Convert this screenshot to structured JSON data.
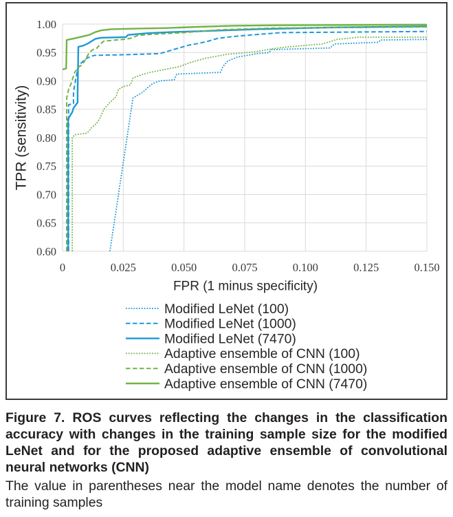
{
  "caption": {
    "title": "Figure 7. ROS curves reflecting the changes in the classification accuracy with changes in the training sample size for the modified LeNet and for the proposed adaptive ensemble of convolutional neural networks (CNN)",
    "note": "The value in parentheses near the model name denotes the number of training samples"
  },
  "chart_data": {
    "type": "line",
    "xlabel": "FPR (1 minus specificity)",
    "ylabel": "TPR (sensitivity)",
    "xlim": [
      0,
      0.15
    ],
    "ylim": [
      0.6,
      1.0
    ],
    "x_ticks": [
      0,
      0.025,
      0.05,
      0.075,
      0.1,
      0.125,
      0.15
    ],
    "x_tick_labels": [
      "0",
      "0.025",
      "0.050",
      "0.075",
      "0.100",
      "0.125",
      "0.150"
    ],
    "y_ticks": [
      0.6,
      0.65,
      0.7,
      0.75,
      0.8,
      0.85,
      0.9,
      0.95,
      1.0
    ],
    "y_tick_labels": [
      "0.60",
      "0.65",
      "0.70",
      "0.75",
      "0.80",
      "0.85",
      "0.90",
      "0.95",
      "1.00"
    ],
    "grid": true,
    "legend_position": "bottom",
    "series": [
      {
        "name": "Modified LeNet (100)",
        "color": "#1f97d6",
        "line_style": "dotted",
        "x": [
          0.0195,
          0.029,
          0.031,
          0.033,
          0.035,
          0.037,
          0.04,
          0.046,
          0.047,
          0.065,
          0.066,
          0.068,
          0.072,
          0.08,
          0.085,
          0.086,
          0.11,
          0.112,
          0.13,
          0.131,
          0.15
        ],
        "y": [
          0.6,
          0.87,
          0.875,
          0.88,
          0.888,
          0.895,
          0.9,
          0.902,
          0.912,
          0.915,
          0.925,
          0.935,
          0.942,
          0.948,
          0.95,
          0.955,
          0.958,
          0.965,
          0.968,
          0.972,
          0.973
        ]
      },
      {
        "name": "Modified LeNet (1000)",
        "color": "#1f97d6",
        "line_style": "dashed",
        "x": [
          0.0025,
          0.0025,
          0.0045,
          0.0045,
          0.0055,
          0.0065,
          0.008,
          0.01,
          0.013,
          0.025,
          0.04,
          0.044,
          0.048,
          0.052,
          0.056,
          0.06,
          0.064,
          0.07,
          0.078,
          0.09,
          0.15
        ],
        "y": [
          0.6,
          0.858,
          0.86,
          0.88,
          0.905,
          0.925,
          0.933,
          0.94,
          0.945,
          0.946,
          0.948,
          0.953,
          0.958,
          0.963,
          0.966,
          0.97,
          0.975,
          0.978,
          0.981,
          0.985,
          0.987
        ]
      },
      {
        "name": "Modified LeNet (7470)",
        "color": "#1f97d6",
        "line_style": "solid",
        "x": [
          0.0023,
          0.0023,
          0.003,
          0.004,
          0.0045,
          0.0055,
          0.0062,
          0.0062,
          0.0065,
          0.0085,
          0.0105,
          0.012,
          0.0135,
          0.016,
          0.026,
          0.027,
          0.035,
          0.045,
          0.06,
          0.08,
          0.11,
          0.15
        ],
        "y": [
          0.6,
          0.833,
          0.838,
          0.845,
          0.852,
          0.858,
          0.862,
          0.88,
          0.96,
          0.962,
          0.966,
          0.97,
          0.974,
          0.976,
          0.977,
          0.981,
          0.984,
          0.986,
          0.988,
          0.991,
          0.994,
          0.996
        ]
      },
      {
        "name": "Adaptive ensemble of CNN (100)",
        "color": "#71b445",
        "line_style": "dotted",
        "x": [
          0.004,
          0.004,
          0.005,
          0.01,
          0.011,
          0.012,
          0.014,
          0.0155,
          0.017,
          0.019,
          0.022,
          0.023,
          0.025,
          0.028,
          0.029,
          0.032,
          0.036,
          0.042,
          0.048,
          0.053,
          0.059,
          0.068,
          0.079,
          0.087,
          0.093,
          0.107,
          0.113,
          0.122,
          0.15
        ],
        "y": [
          0.6,
          0.8,
          0.805,
          0.808,
          0.812,
          0.818,
          0.825,
          0.835,
          0.85,
          0.86,
          0.872,
          0.885,
          0.89,
          0.893,
          0.905,
          0.91,
          0.915,
          0.92,
          0.925,
          0.933,
          0.94,
          0.947,
          0.951,
          0.957,
          0.96,
          0.965,
          0.973,
          0.977,
          0.977
        ]
      },
      {
        "name": "Adaptive ensemble of CNN (1000)",
        "color": "#71b445",
        "line_style": "dashed",
        "x": [
          0.0017,
          0.0017,
          0.0025,
          0.0035,
          0.005,
          0.0068,
          0.008,
          0.0095,
          0.011,
          0.0125,
          0.014,
          0.0155,
          0.017,
          0.022,
          0.025,
          0.028,
          0.031,
          0.037,
          0.05,
          0.065,
          0.087,
          0.15
        ],
        "y": [
          0.6,
          0.87,
          0.885,
          0.895,
          0.915,
          0.925,
          0.928,
          0.938,
          0.95,
          0.955,
          0.957,
          0.965,
          0.97,
          0.972,
          0.973,
          0.975,
          0.98,
          0.982,
          0.985,
          0.99,
          0.993,
          0.995
        ]
      },
      {
        "name": "Adaptive ensemble of CNN (7470)",
        "color": "#71b445",
        "line_style": "solid",
        "x": [
          0.0,
          0.0015,
          0.0017,
          0.004,
          0.006,
          0.008,
          0.011,
          0.0135,
          0.016,
          0.02,
          0.03,
          0.042,
          0.055,
          0.07,
          0.09,
          0.15
        ],
        "y": [
          0.92,
          0.922,
          0.972,
          0.974,
          0.976,
          0.978,
          0.981,
          0.986,
          0.989,
          0.991,
          0.992,
          0.993,
          0.995,
          0.997,
          0.998,
          0.999
        ]
      }
    ]
  }
}
